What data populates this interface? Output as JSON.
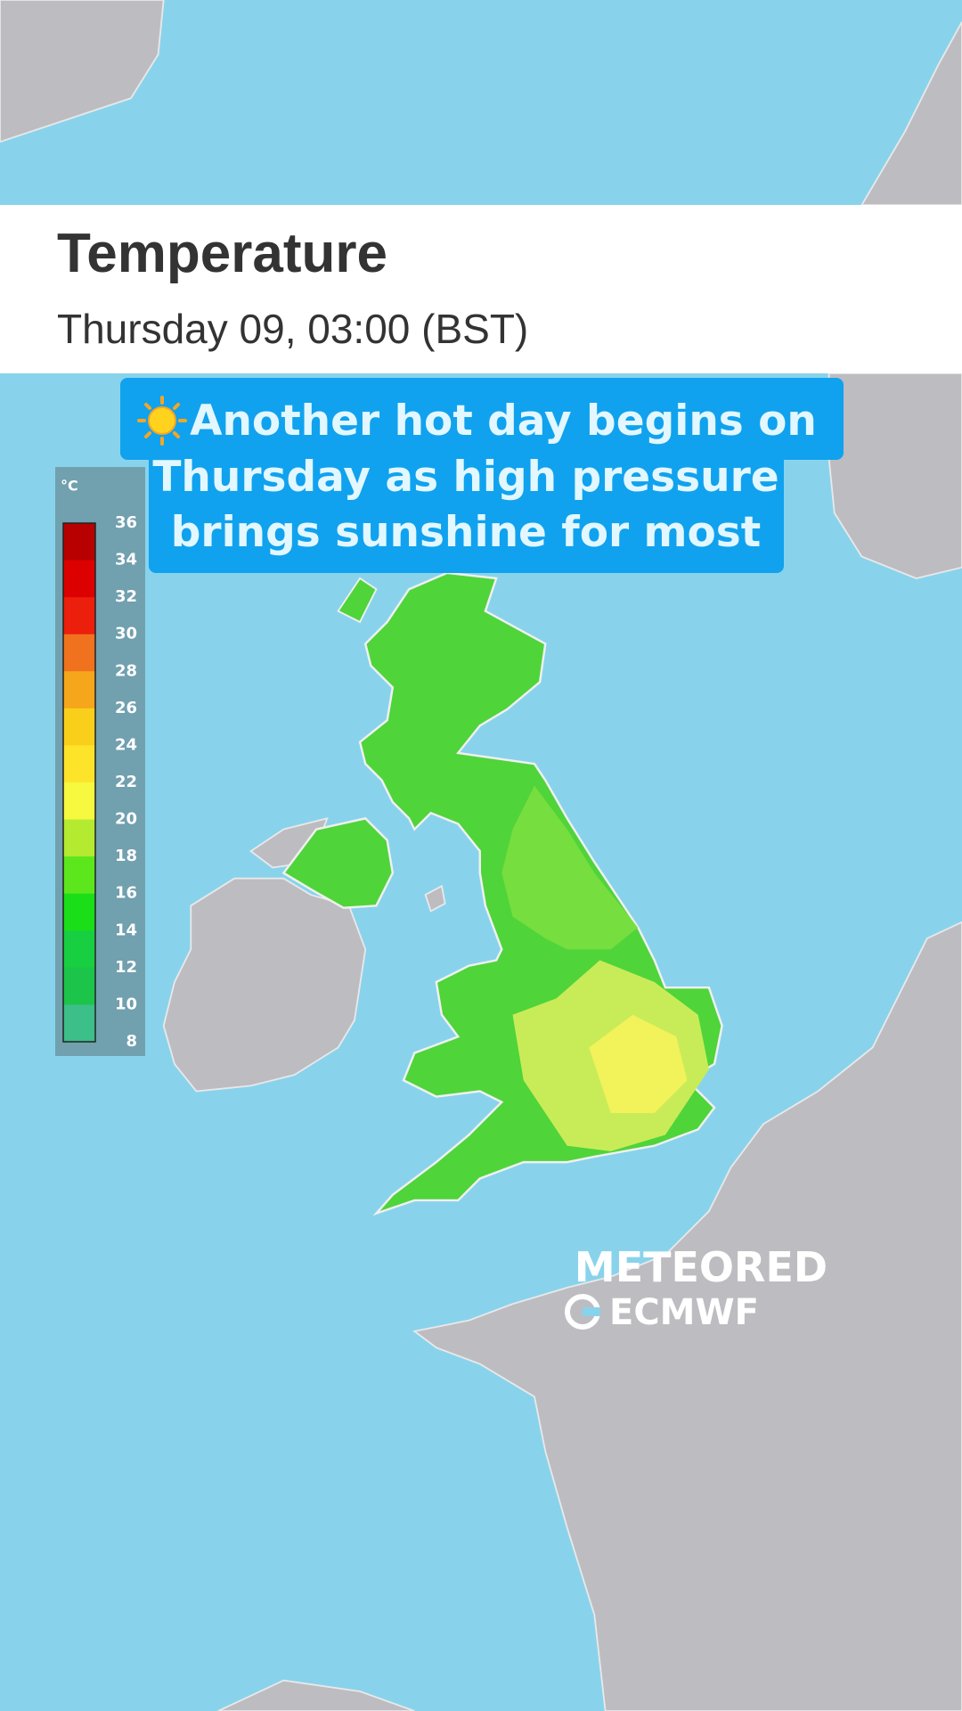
{
  "header": {
    "title": "Temperature",
    "subtitle": "Thursday 09, 03:00 (BST)"
  },
  "banner": {
    "lines": [
      "Another hot day begins on",
      "Thursday as high pressure",
      "brings sunshine for most"
    ]
  },
  "legend": {
    "unit": "°C",
    "labels": [
      36,
      34,
      32,
      30,
      28,
      26,
      24,
      22,
      20,
      18,
      16,
      14,
      12,
      10,
      8
    ],
    "colors": [
      "#b80000",
      "#dc0000",
      "#ec1e0c",
      "#f0721e",
      "#f5a61a",
      "#facf1c",
      "#fde42a",
      "#f7f840",
      "#b4ea30",
      "#5ce61c",
      "#1ade18",
      "#18cf42",
      "#1cc44a",
      "#3cbf88"
    ]
  },
  "logos": {
    "brand": "METEORED",
    "source": "ECMWF"
  }
}
